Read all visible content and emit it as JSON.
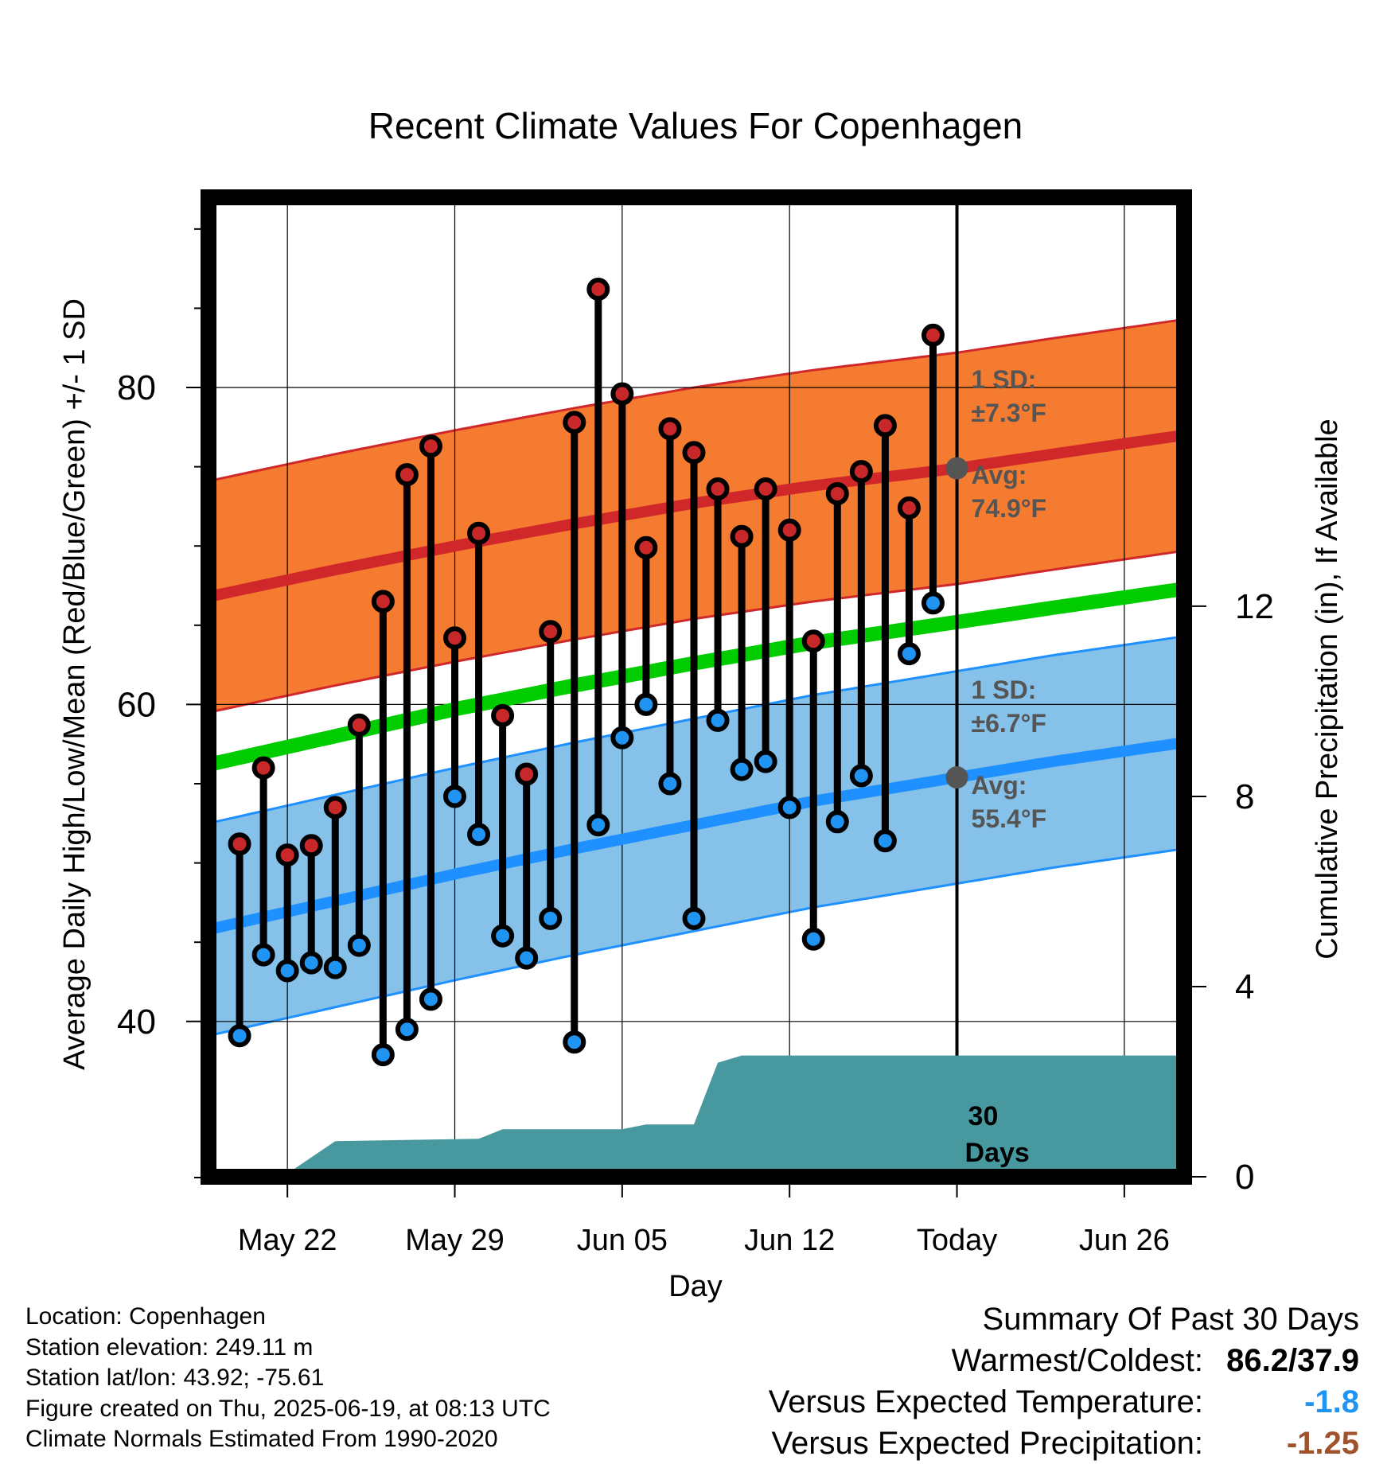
{
  "chart_data": {
    "type": "line",
    "title": "Recent Climate Values For Copenhagen",
    "xlabel": "Day",
    "ylabel": "Average Daily High/Low/Mean (Red/Blue/Green) +/- 1 SD",
    "y2label": "Cumulative Precipitation (in), If Available",
    "x_ticks": [
      "May 22",
      "May 29",
      "Jun 05",
      "Jun 12",
      "Today",
      "Jun 26"
    ],
    "x_tick_days": [
      0,
      7,
      14,
      21,
      28,
      35
    ],
    "x_range_days": [
      -3.3,
      37.5
    ],
    "x_note": "x values are day offsets from May 22",
    "ylim": [
      30.2,
      92
    ],
    "y_ticks": [
      40,
      60,
      80
    ],
    "y2lim": [
      0,
      20.6
    ],
    "y2_ticks": [
      0,
      4,
      8,
      12
    ],
    "grid": true,
    "today_day": 28,
    "daily": [
      {
        "day": -2,
        "high": 51.2,
        "low": 39.1
      },
      {
        "day": -1,
        "high": 56.0,
        "low": 44.2
      },
      {
        "day": 0,
        "high": 50.5,
        "low": 43.2
      },
      {
        "day": 1,
        "high": 51.1,
        "low": 43.7
      },
      {
        "day": 2,
        "high": 53.5,
        "low": 43.4
      },
      {
        "day": 3,
        "high": 58.7,
        "low": 44.8
      },
      {
        "day": 4,
        "high": 66.5,
        "low": 37.9
      },
      {
        "day": 5,
        "high": 74.5,
        "low": 39.5
      },
      {
        "day": 6,
        "high": 76.3,
        "low": 41.4
      },
      {
        "day": 7,
        "high": 64.2,
        "low": 54.2
      },
      {
        "day": 8,
        "high": 70.8,
        "low": 51.8
      },
      {
        "day": 9,
        "high": 59.3,
        "low": 45.4
      },
      {
        "day": 10,
        "high": 55.6,
        "low": 44.0
      },
      {
        "day": 11,
        "high": 64.6,
        "low": 46.5
      },
      {
        "day": 12,
        "high": 77.8,
        "low": 38.7
      },
      {
        "day": 13,
        "high": 86.2,
        "low": 52.4
      },
      {
        "day": 14,
        "high": 79.6,
        "low": 57.9
      },
      {
        "day": 15,
        "high": 69.9,
        "low": 60.0
      },
      {
        "day": 16,
        "high": 77.4,
        "low": 55.0
      },
      {
        "day": 17,
        "high": 75.9,
        "low": 46.5
      },
      {
        "day": 18,
        "high": 73.6,
        "low": 59.0
      },
      {
        "day": 19,
        "high": 70.6,
        "low": 55.9
      },
      {
        "day": 20,
        "high": 73.6,
        "low": 56.4
      },
      {
        "day": 21,
        "high": 71.0,
        "low": 53.5
      },
      {
        "day": 22,
        "high": 64.0,
        "low": 45.2
      },
      {
        "day": 23,
        "high": 73.3,
        "low": 52.6
      },
      {
        "day": 24,
        "high": 74.7,
        "low": 55.5
      },
      {
        "day": 25,
        "high": 77.6,
        "low": 51.4
      },
      {
        "day": 26,
        "high": 72.4,
        "low": 63.2
      },
      {
        "day": 27,
        "high": 83.3,
        "low": 66.4
      }
    ],
    "normals": {
      "day": [
        -3.3,
        2.0,
        7.0,
        12.0,
        17.0,
        22.0,
        28.0,
        32.0,
        37.5
      ],
      "avg_high": [
        66.8,
        68.5,
        70.0,
        71.4,
        72.7,
        73.8,
        74.9,
        75.8,
        77.0
      ],
      "avg_low": [
        45.8,
        47.6,
        49.3,
        50.9,
        52.4,
        53.9,
        55.4,
        56.4,
        57.6
      ],
      "avg_mean": [
        56.2,
        58.0,
        59.7,
        61.2,
        62.6,
        63.9,
        65.2,
        66.1,
        67.3
      ],
      "high_sd": 7.3,
      "low_sd": 6.7
    },
    "precip_cumulative": [
      {
        "day": -3.3,
        "value": 0.0
      },
      {
        "day": -0.2,
        "value": 0.0
      },
      {
        "day": 2.0,
        "value": 0.75
      },
      {
        "day": 8.0,
        "value": 0.8
      },
      {
        "day": 9.0,
        "value": 1.0
      },
      {
        "day": 14.0,
        "value": 1.0
      },
      {
        "day": 15.0,
        "value": 1.1
      },
      {
        "day": 17.0,
        "value": 1.1
      },
      {
        "day": 18.0,
        "value": 2.4
      },
      {
        "day": 19.0,
        "value": 2.55
      },
      {
        "day": 37.5,
        "value": 2.55
      }
    ],
    "annotations": {
      "high_sd_label": "1 SD:",
      "high_sd_value": "±7.3°F",
      "high_avg_label": "Avg:",
      "high_avg_value": "74.9°F",
      "low_sd_label": "1 SD:",
      "low_sd_value": "±6.7°F",
      "low_avg_label": "Avg:",
      "low_avg_value": "55.4°F",
      "window_number": "30",
      "window_unit": "Days"
    },
    "colors": {
      "high_band": "#f47b30",
      "high_line": "#d0282a",
      "low_band": "#85c1e9",
      "low_line": "#1e90ff",
      "mean_line": "#00cc00",
      "precip": "#48999f",
      "high_marker": "#c8282a",
      "low_marker": "#2094f3",
      "annotation": "#555555",
      "frame": "#000000"
    }
  },
  "footer": {
    "location": "Location: Copenhagen",
    "elevation": "Station elevation: 249.11 m",
    "latlon": "Station lat/lon: 43.92; -75.61",
    "created": "Figure created on Thu, 2025-06-19, at 08:13 UTC",
    "normals": "Climate Normals Estimated From 1990-2020"
  },
  "summary": {
    "title": "Summary Of Past 30 Days",
    "warmest_label": "Warmest/Coldest:",
    "warmest_value": "86.2/37.9",
    "temp_label": "Versus Expected Temperature:",
    "temp_value": "-1.8",
    "temp_color": "#2094f3",
    "precip_label": "Versus Expected Precipitation:",
    "precip_value": "-1.25",
    "precip_color": "#a0522d"
  }
}
